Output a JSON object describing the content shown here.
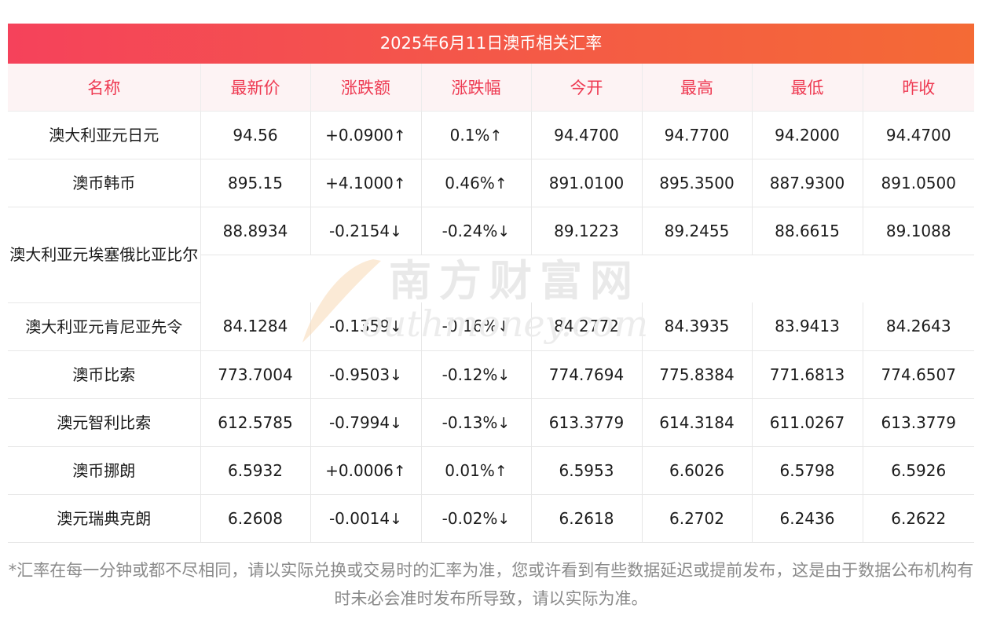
{
  "title": "2025年6月11日澳币相关汇率",
  "headers": [
    "名称",
    "最新价",
    "涨跌额",
    "涨跌幅",
    "今开",
    "最高",
    "最低",
    "昨收"
  ],
  "rows": [
    {
      "name": "澳大利亚元日元",
      "latest": "94.56",
      "change": "+0.0900",
      "pct": "0.1%",
      "open": "94.4700",
      "high": "94.7700",
      "low": "94.2000",
      "prev": "94.4700",
      "dir": "up"
    },
    {
      "name": "澳币韩币",
      "latest": "895.15",
      "change": "+4.1000",
      "pct": "0.46%",
      "open": "891.0100",
      "high": "895.3500",
      "low": "887.9300",
      "prev": "891.0500",
      "dir": "up"
    },
    {
      "name": "澳大利亚元埃塞俄比亚比尔",
      "latest": "88.8934",
      "change": "-0.2154",
      "pct": "-0.24%",
      "open": "89.1223",
      "high": "89.2455",
      "low": "88.6615",
      "prev": "89.1088",
      "dir": "down"
    },
    {
      "name": "澳大利亚元肯尼亚先令",
      "latest": "84.1284",
      "change": "-0.1359",
      "pct": "-0.16%",
      "open": "84.2772",
      "high": "84.3935",
      "low": "83.9413",
      "prev": "84.2643",
      "dir": "down"
    },
    {
      "name": "澳币比索",
      "latest": "773.7004",
      "change": "-0.9503",
      "pct": "-0.12%",
      "open": "774.7694",
      "high": "775.8384",
      "low": "771.6813",
      "prev": "774.6507",
      "dir": "down"
    },
    {
      "name": "澳元智利比索",
      "latest": "612.5785",
      "change": "-0.7994",
      "pct": "-0.13%",
      "open": "613.3779",
      "high": "614.3184",
      "low": "611.0267",
      "prev": "613.3779",
      "dir": "down"
    },
    {
      "name": "澳币挪朗",
      "latest": "6.5932",
      "change": "+0.0006",
      "pct": "0.01%",
      "open": "6.5953",
      "high": "6.6026",
      "low": "6.5798",
      "prev": "6.5926",
      "dir": "up"
    },
    {
      "name": "澳元瑞典克朗",
      "latest": "6.2608",
      "change": "-0.0014",
      "pct": "-0.02%",
      "open": "6.2618",
      "high": "6.2702",
      "low": "6.2436",
      "prev": "6.2622",
      "dir": "down"
    }
  ],
  "arrows": {
    "up": "↑",
    "down": "↓"
  },
  "watermark": {
    "cn": "南方财富网",
    "en": "outhmoney.com"
  },
  "note": "*汇率在每一分钟或都不尽相同，请以实际兑换或交易时的汇率为准，您或许看到有些数据延迟或提前发布，这是由于数据公布机构有时未必会准时发布所导致，请以实际为准。",
  "colors": {
    "header_gradient_start": "#f5425b",
    "header_gradient_end": "#f46a35",
    "up": "#e52129",
    "down": "#1d8a1d",
    "header_text": "#ee3a52"
  }
}
